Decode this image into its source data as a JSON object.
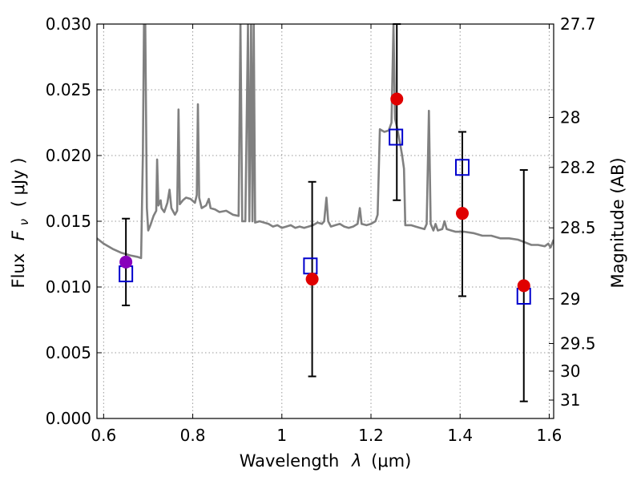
{
  "chart_data": {
    "type": "scatter",
    "xlabel_text": "Wavelength",
    "xlabel_symbol": "λ",
    "xlabel_unit": "(μm)",
    "ylabel_text": "Flux",
    "ylabel_symbol": "F",
    "ylabel_subscript": "ν",
    "ylabel_unit": "( μJy )",
    "y2label": "Magnitude (AB)",
    "xlim": [
      0.585,
      1.61
    ],
    "ylim": [
      0.0,
      0.03
    ],
    "grid": true,
    "x_ticks": [
      0.6,
      0.8,
      1.0,
      1.2,
      1.4,
      1.6
    ],
    "x_tick_labels": [
      "0.6",
      "0.8",
      "1",
      "1.2",
      "1.4",
      "1.6"
    ],
    "y_ticks": [
      0.0,
      0.005,
      0.01,
      0.015,
      0.02,
      0.025,
      0.03
    ],
    "y_tick_labels": [
      "0.000",
      "0.005",
      "0.010",
      "0.015",
      "0.020",
      "0.025",
      "0.030"
    ],
    "y2_ticks": [
      {
        "label": "27.7",
        "flux": 0.03
      },
      {
        "label": "28",
        "flux": 0.0229
      },
      {
        "label": "28.2",
        "flux": 0.0191
      },
      {
        "label": "28.5",
        "flux": 0.0145
      },
      {
        "label": "29",
        "flux": 0.0091
      },
      {
        "label": "29.5",
        "flux": 0.0057
      },
      {
        "label": "30",
        "flux": 0.0036
      },
      {
        "label": "31",
        "flux": 0.0014
      }
    ],
    "spectrum": {
      "color": "#808080",
      "points": [
        [
          0.585,
          0.0137
        ],
        [
          0.6,
          0.0133
        ],
        [
          0.62,
          0.0129
        ],
        [
          0.64,
          0.0126
        ],
        [
          0.66,
          0.0124
        ],
        [
          0.675,
          0.0123
        ],
        [
          0.684,
          0.0122
        ],
        [
          0.688,
          0.02
        ],
        [
          0.6905,
          0.03
        ],
        [
          0.6935,
          0.03
        ],
        [
          0.697,
          0.016
        ],
        [
          0.7,
          0.0143
        ],
        [
          0.705,
          0.0147
        ],
        [
          0.712,
          0.0154
        ],
        [
          0.718,
          0.0158
        ],
        [
          0.72,
          0.0197
        ],
        [
          0.723,
          0.0162
        ],
        [
          0.728,
          0.0166
        ],
        [
          0.73,
          0.016
        ],
        [
          0.736,
          0.0157
        ],
        [
          0.743,
          0.0164
        ],
        [
          0.748,
          0.0174
        ],
        [
          0.752,
          0.016
        ],
        [
          0.76,
          0.0155
        ],
        [
          0.765,
          0.0158
        ],
        [
          0.768,
          0.0235
        ],
        [
          0.771,
          0.0163
        ],
        [
          0.778,
          0.0166
        ],
        [
          0.785,
          0.0168
        ],
        [
          0.795,
          0.0167
        ],
        [
          0.805,
          0.0164
        ],
        [
          0.809,
          0.017
        ],
        [
          0.8115,
          0.0239
        ],
        [
          0.8145,
          0.0168
        ],
        [
          0.82,
          0.016
        ],
        [
          0.83,
          0.0162
        ],
        [
          0.836,
          0.0167
        ],
        [
          0.84,
          0.016
        ],
        [
          0.85,
          0.0159
        ],
        [
          0.86,
          0.0157
        ],
        [
          0.875,
          0.0158
        ],
        [
          0.89,
          0.0155
        ],
        [
          0.903,
          0.0154
        ],
        [
          0.907,
          0.03
        ],
        [
          0.911,
          0.015
        ],
        [
          0.918,
          0.015
        ],
        [
          0.924,
          0.03
        ],
        [
          0.927,
          0.015
        ],
        [
          0.931,
          0.03
        ],
        [
          0.934,
          0.015
        ],
        [
          0.937,
          0.03
        ],
        [
          0.94,
          0.0149
        ],
        [
          0.95,
          0.015
        ],
        [
          0.96,
          0.0149
        ],
        [
          0.97,
          0.0148
        ],
        [
          0.98,
          0.0146
        ],
        [
          0.99,
          0.0147
        ],
        [
          1.0,
          0.0145
        ],
        [
          1.01,
          0.0146
        ],
        [
          1.02,
          0.0147
        ],
        [
          1.03,
          0.0145
        ],
        [
          1.04,
          0.0146
        ],
        [
          1.05,
          0.0145
        ],
        [
          1.06,
          0.0146
        ],
        [
          1.07,
          0.0147
        ],
        [
          1.08,
          0.0149
        ],
        [
          1.09,
          0.0148
        ],
        [
          1.095,
          0.015
        ],
        [
          1.1,
          0.0168
        ],
        [
          1.104,
          0.015
        ],
        [
          1.11,
          0.0146
        ],
        [
          1.12,
          0.0147
        ],
        [
          1.13,
          0.0148
        ],
        [
          1.14,
          0.0146
        ],
        [
          1.15,
          0.0145
        ],
        [
          1.16,
          0.0146
        ],
        [
          1.17,
          0.0148
        ],
        [
          1.175,
          0.016
        ],
        [
          1.179,
          0.0148
        ],
        [
          1.19,
          0.0147
        ],
        [
          1.2,
          0.0148
        ],
        [
          1.21,
          0.015
        ],
        [
          1.215,
          0.0155
        ],
        [
          1.22,
          0.022
        ],
        [
          1.23,
          0.0218
        ],
        [
          1.24,
          0.0219
        ],
        [
          1.246,
          0.0225
        ],
        [
          1.2505,
          0.03
        ],
        [
          1.254,
          0.0228
        ],
        [
          1.258,
          0.0222
        ],
        [
          1.265,
          0.021
        ],
        [
          1.27,
          0.02
        ],
        [
          1.274,
          0.019
        ],
        [
          1.277,
          0.0147
        ],
        [
          1.29,
          0.0147
        ],
        [
          1.3,
          0.0146
        ],
        [
          1.31,
          0.0145
        ],
        [
          1.32,
          0.0144
        ],
        [
          1.325,
          0.0148
        ],
        [
          1.33,
          0.0234
        ],
        [
          1.334,
          0.0148
        ],
        [
          1.34,
          0.0143
        ],
        [
          1.345,
          0.0148
        ],
        [
          1.35,
          0.0143
        ],
        [
          1.36,
          0.0144
        ],
        [
          1.365,
          0.015
        ],
        [
          1.37,
          0.0144
        ],
        [
          1.38,
          0.0143
        ],
        [
          1.39,
          0.0142
        ],
        [
          1.41,
          0.0142
        ],
        [
          1.43,
          0.0141
        ],
        [
          1.45,
          0.0139
        ],
        [
          1.47,
          0.0139
        ],
        [
          1.49,
          0.0137
        ],
        [
          1.51,
          0.0137
        ],
        [
          1.53,
          0.0136
        ],
        [
          1.545,
          0.0134
        ],
        [
          1.56,
          0.0132
        ],
        [
          1.575,
          0.0132
        ],
        [
          1.59,
          0.0131
        ],
        [
          1.598,
          0.0133
        ],
        [
          1.603,
          0.013
        ],
        [
          1.61,
          0.0136
        ]
      ]
    },
    "series": [
      {
        "marker": "circle",
        "color": "#e00000",
        "points": [
          {
            "x": 1.068,
            "y": 0.0106
          },
          {
            "x": 1.258,
            "y": 0.0243
          },
          {
            "x": 1.405,
            "y": 0.0156
          },
          {
            "x": 1.543,
            "y": 0.0101
          }
        ]
      },
      {
        "marker": "circle",
        "color": "#8800bb",
        "points": [
          {
            "x": 0.65,
            "y": 0.0119
          }
        ]
      },
      {
        "marker": "open-square",
        "color": "#0000cc",
        "points": [
          {
            "x": 0.65,
            "y": 0.011
          },
          {
            "x": 1.064,
            "y": 0.0116
          },
          {
            "x": 1.256,
            "y": 0.0214
          },
          {
            "x": 1.405,
            "y": 0.0191
          },
          {
            "x": 1.543,
            "y": 0.0093
          }
        ]
      }
    ],
    "error_bars": [
      {
        "x": 0.65,
        "low": 0.0086,
        "high": 0.0152
      },
      {
        "x": 1.068,
        "low": 0.0032,
        "high": 0.018
      },
      {
        "x": 1.258,
        "low": 0.0166,
        "high": 0.03
      },
      {
        "x": 1.405,
        "low": 0.0093,
        "high": 0.0218
      },
      {
        "x": 1.543,
        "low": 0.0013,
        "high": 0.0189
      }
    ]
  }
}
